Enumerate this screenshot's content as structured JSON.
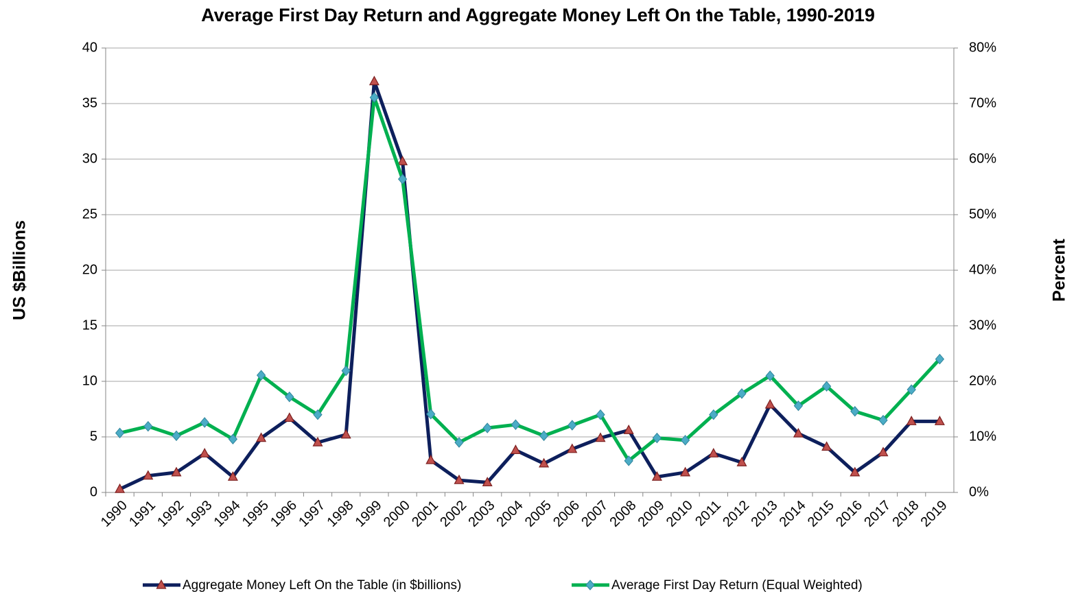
{
  "chart_data": {
    "type": "line",
    "title": "Average First Day Return and Aggregate Money Left On the Table, 1990-2019",
    "ylabel": "US $Billions",
    "y2label": "Percent",
    "categories": [
      "1990",
      "1991",
      "1992",
      "1993",
      "1994",
      "1995",
      "1996",
      "1997",
      "1998",
      "1999",
      "2000",
      "2001",
      "2002",
      "2003",
      "2004",
      "2005",
      "2006",
      "2007",
      "2008",
      "2009",
      "2010",
      "2011",
      "2012",
      "2013",
      "2014",
      "2015",
      "2016",
      "2017",
      "2018",
      "2019"
    ],
    "series": [
      {
        "name": "Aggregate Money Left On the Table (in $billions)",
        "color": "#0d1f5c",
        "marker": "triangle",
        "marker_color": "#c0504d",
        "values": [
          0.3,
          1.5,
          1.8,
          3.5,
          1.4,
          4.9,
          6.7,
          4.5,
          5.2,
          37.0,
          29.8,
          2.9,
          1.1,
          0.9,
          3.8,
          2.6,
          3.9,
          4.9,
          5.6,
          1.4,
          1.8,
          3.5,
          2.7,
          7.9,
          5.3,
          4.1,
          1.8,
          3.6,
          6.4,
          6.4
        ]
      },
      {
        "name": "Average First Day Return (Equal Weighted)",
        "color": "#00b050",
        "marker": "diamond",
        "marker_color": "#4bacc6",
        "axis": "y2",
        "values": [
          10.7,
          11.9,
          10.2,
          12.6,
          9.6,
          21.1,
          17.2,
          14.0,
          21.9,
          71.1,
          56.4,
          14.1,
          9.0,
          11.6,
          12.2,
          10.2,
          12.1,
          14.0,
          5.7,
          9.8,
          9.4,
          14.0,
          17.8,
          21.0,
          15.6,
          19.1,
          14.6,
          13.0,
          18.5,
          24.0
        ]
      }
    ],
    "ylim": [
      0,
      40
    ],
    "yticks": [
      0,
      5,
      10,
      15,
      20,
      25,
      30,
      35,
      40
    ],
    "y2lim": [
      0,
      80
    ],
    "y2ticks": [
      {
        "value": 0,
        "label": "0%"
      },
      {
        "value": 10,
        "label": "10%"
      },
      {
        "value": 20,
        "label": "20%"
      },
      {
        "value": 30,
        "label": "30%"
      },
      {
        "value": 40,
        "label": "40%"
      },
      {
        "value": 50,
        "label": "50%"
      },
      {
        "value": 60,
        "label": "60%"
      },
      {
        "value": 70,
        "label": "70%"
      },
      {
        "value": 80,
        "label": "80%"
      }
    ],
    "grid": true,
    "legend": "bottom"
  }
}
